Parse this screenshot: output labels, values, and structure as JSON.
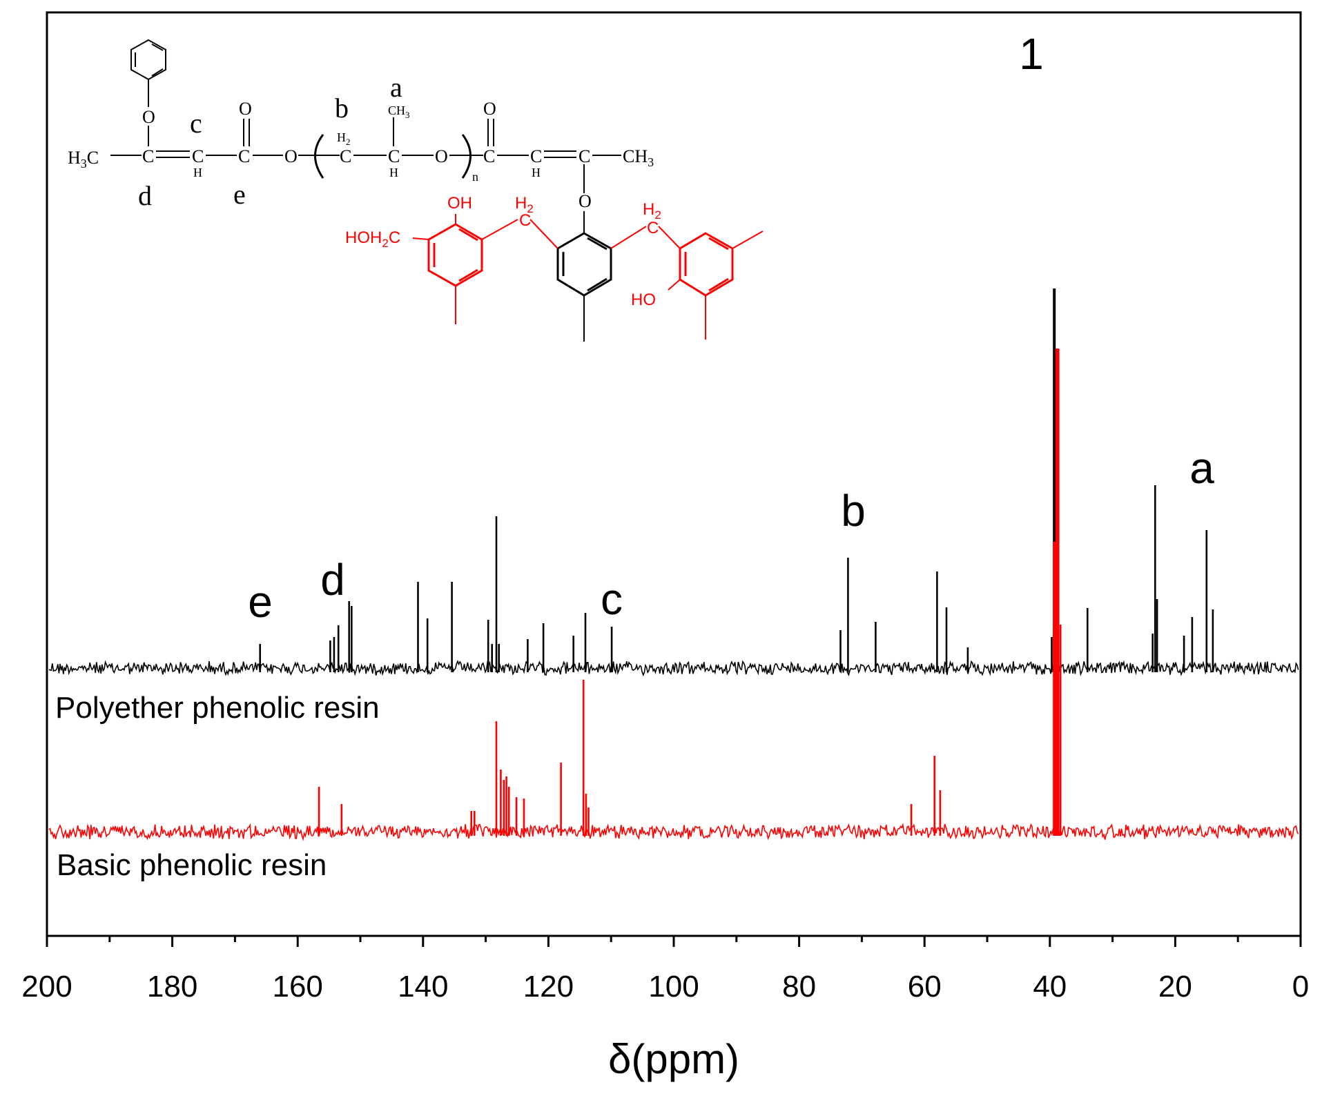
{
  "chart_data": {
    "type": "line",
    "xlabel": "δ(ppm)",
    "ylabel": "",
    "xlim": [
      200,
      0
    ],
    "x_reversed": true,
    "xticks": [
      "200",
      "180",
      "160",
      "140",
      "120",
      "100",
      "80",
      "60",
      "40",
      "20",
      "0"
    ],
    "y_tick_labels": false,
    "grid": false,
    "series": [
      {
        "name": "Polyether phenolic resin",
        "color": "#000000",
        "baseline_level": 0,
        "peaks": [
          {
            "x": 166.0,
            "h": 0.35
          },
          {
            "x": 154.8,
            "h": 0.4
          },
          {
            "x": 154.2,
            "h": 0.45
          },
          {
            "x": 153.5,
            "h": 0.62
          },
          {
            "x": 151.8,
            "h": 0.97
          },
          {
            "x": 151.4,
            "h": 0.9
          },
          {
            "x": 140.8,
            "h": 1.25
          },
          {
            "x": 139.3,
            "h": 0.72
          },
          {
            "x": 135.4,
            "h": 1.25
          },
          {
            "x": 129.6,
            "h": 0.7
          },
          {
            "x": 129.0,
            "h": 0.35
          },
          {
            "x": 128.3,
            "h": 2.2
          },
          {
            "x": 127.9,
            "h": 0.35
          },
          {
            "x": 123.3,
            "h": 0.42
          },
          {
            "x": 120.8,
            "h": 0.65
          },
          {
            "x": 116.0,
            "h": 0.47
          },
          {
            "x": 114.1,
            "h": 0.8
          },
          {
            "x": 109.9,
            "h": 0.6
          },
          {
            "x": 73.4,
            "h": 0.55
          },
          {
            "x": 72.2,
            "h": 1.6
          },
          {
            "x": 67.8,
            "h": 0.67
          },
          {
            "x": 58.0,
            "h": 1.4
          },
          {
            "x": 56.5,
            "h": 0.88
          },
          {
            "x": 53.1,
            "h": 0.3
          },
          {
            "x": 39.7,
            "h": 0.45
          },
          {
            "x": 39.3,
            "h": 5.5
          },
          {
            "x": 39.0,
            "h": 3.0
          },
          {
            "x": 38.7,
            "h": 2.2
          },
          {
            "x": 34.0,
            "h": 0.87
          },
          {
            "x": 23.6,
            "h": 0.5
          },
          {
            "x": 23.2,
            "h": 2.65
          },
          {
            "x": 22.9,
            "h": 1.0
          },
          {
            "x": 18.6,
            "h": 0.47
          },
          {
            "x": 17.3,
            "h": 0.74
          },
          {
            "x": 15.0,
            "h": 2.0
          },
          {
            "x": 14.0,
            "h": 0.85
          }
        ]
      },
      {
        "name": "Basic phenolic resin",
        "color": "#ff0000",
        "baseline_level": -1,
        "peaks": [
          {
            "x": 156.6,
            "h": 0.65
          },
          {
            "x": 153.0,
            "h": 0.4
          },
          {
            "x": 132.3,
            "h": 0.3
          },
          {
            "x": 131.8,
            "h": 0.3
          },
          {
            "x": 128.3,
            "h": 1.6
          },
          {
            "x": 127.6,
            "h": 0.9
          },
          {
            "x": 127.1,
            "h": 0.75
          },
          {
            "x": 126.7,
            "h": 0.8
          },
          {
            "x": 126.3,
            "h": 0.65
          },
          {
            "x": 125.1,
            "h": 0.5
          },
          {
            "x": 123.9,
            "h": 0.48
          },
          {
            "x": 118.0,
            "h": 1.0
          },
          {
            "x": 114.4,
            "h": 2.2
          },
          {
            "x": 114.0,
            "h": 0.55
          },
          {
            "x": 113.6,
            "h": 0.35
          },
          {
            "x": 62.1,
            "h": 0.4
          },
          {
            "x": 58.4,
            "h": 1.1
          },
          {
            "x": 57.5,
            "h": 0.6
          },
          {
            "x": 39.3,
            "h": 4.2
          },
          {
            "x": 38.9,
            "h": 7.0
          },
          {
            "x": 38.7,
            "h": 7.0
          },
          {
            "x": 38.3,
            "h": 3.0
          }
        ]
      }
    ],
    "annotations": [
      {
        "text": "1",
        "x": 39.8
      },
      {
        "text": "a",
        "x": 15.0
      },
      {
        "text": "b",
        "x": 72.2
      },
      {
        "text": "c",
        "x": 109.9
      },
      {
        "text": "d",
        "x": 154.0
      },
      {
        "text": "e",
        "x": 166.0
      }
    ],
    "structure_labels": {
      "chain": {
        "h3c": "H",
        "h3c_sub": "3",
        "h3c_c": "C",
        "c": "C",
        "h": "H",
        "o": "O",
        "h2": "H",
        "h2_sub": "2",
        "ch3": "CH",
        "ch3_sub": "3",
        "n": "n"
      },
      "letters": {
        "a": "a",
        "b": "b",
        "c": "c",
        "d": "d",
        "e": "e"
      },
      "ring_red": {
        "oh": "OH",
        "hoh2c": "HOH",
        "hoh2c_sub": "2",
        "hoh2c_c": "C",
        "h2": "H",
        "h2_sub": "2",
        "c": "C",
        "ho": "HO"
      }
    }
  }
}
